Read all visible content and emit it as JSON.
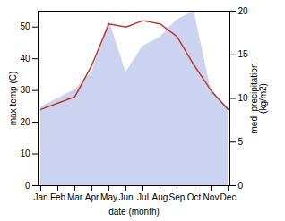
{
  "chart_data": {
    "type": "line",
    "categories": [
      "Jan",
      "Feb",
      "Mar",
      "Apr",
      "May",
      "Jun",
      "Jul",
      "Aug",
      "Sep",
      "Oct",
      "Nov",
      "Dec"
    ],
    "xlabel": "date (month)",
    "ylabel": "max temp (C)",
    "y2label": "med. precipitation\n(kg/m2)",
    "ylim": [
      0,
      55
    ],
    "yticks": [
      0,
      10,
      20,
      30,
      40,
      50
    ],
    "y2lim": [
      0,
      20
    ],
    "y2ticks": [
      0,
      5,
      10,
      15,
      20
    ],
    "series": [
      {
        "type": "area",
        "axis": "y2",
        "color": "#b0bce8",
        "values": [
          9,
          10,
          11,
          13,
          19,
          13,
          16,
          17,
          19,
          20,
          11,
          9
        ]
      },
      {
        "type": "line",
        "color": "#c0392b",
        "values": [
          24,
          26,
          28,
          38,
          51,
          50,
          52,
          51,
          47,
          38,
          30,
          24
        ]
      }
    ]
  }
}
